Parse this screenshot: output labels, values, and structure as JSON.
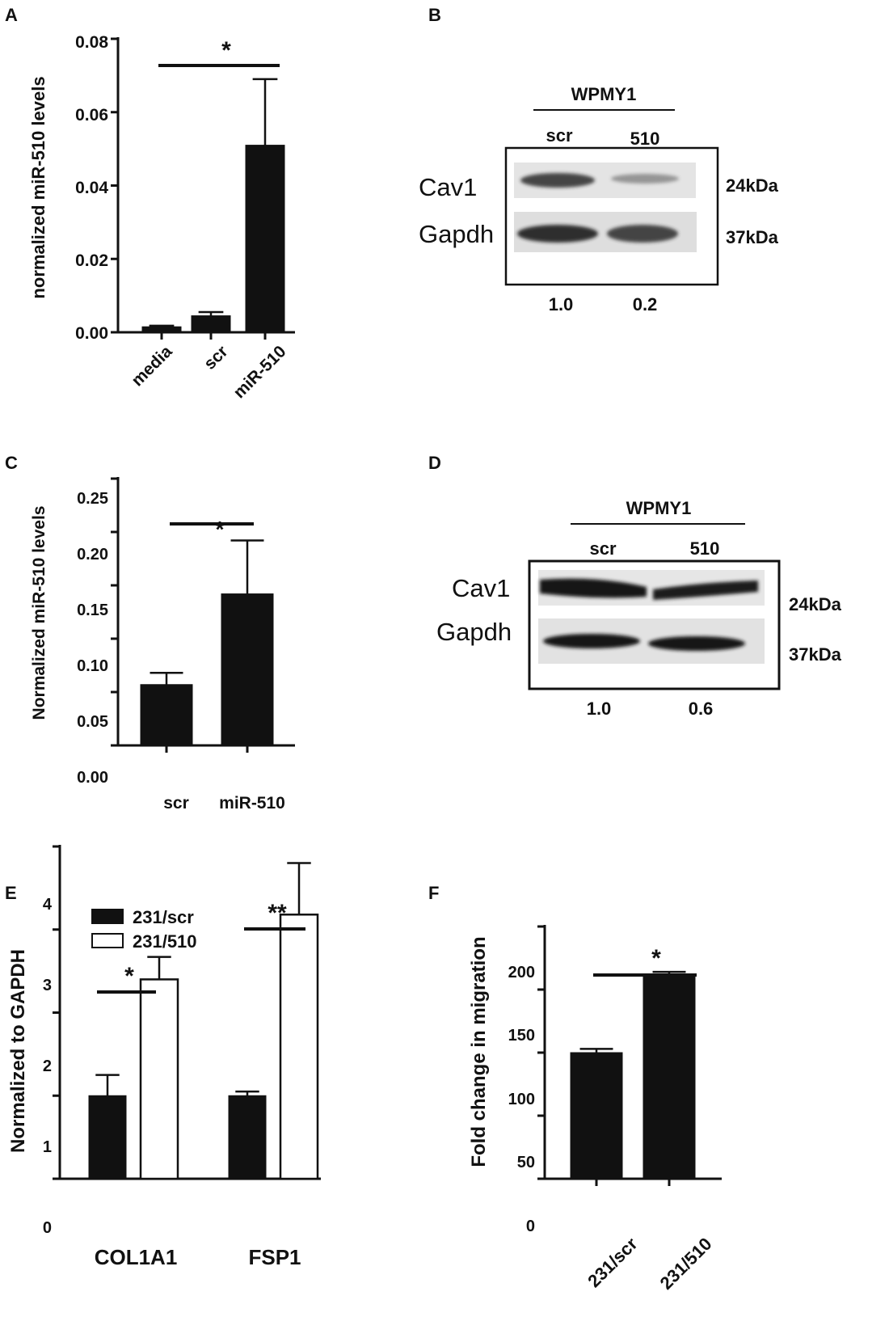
{
  "chart_data": [
    {
      "panel": "A",
      "type": "bar",
      "ylabel": "normalized miR-510 levels",
      "categories": [
        "media",
        "scr",
        "miR-510"
      ],
      "values": [
        0.0015,
        0.0045,
        0.051
      ],
      "errors": [
        0.0003,
        0.001,
        0.018
      ],
      "ylim": [
        0,
        0.08
      ],
      "yticks": [
        "0.00",
        "0.02",
        "0.04",
        "0.06",
        "0.08"
      ],
      "significance": [
        {
          "from": 0,
          "to": 2,
          "label": "*"
        }
      ],
      "legend": "none",
      "grid": false
    },
    {
      "panel": "C",
      "type": "bar",
      "ylabel": "Normalized miR-510 levels",
      "categories": [
        "scr",
        "miR-510"
      ],
      "values": [
        0.057,
        0.142
      ],
      "errors": [
        0.011,
        0.05
      ],
      "ylim": [
        0,
        0.25
      ],
      "yticks": [
        "0.00",
        "0.05",
        "0.10",
        "0.15",
        "0.20",
        "0.25"
      ],
      "significance": [
        {
          "from": 0,
          "to": 1,
          "label": "*"
        }
      ],
      "legend": "none",
      "grid": false
    },
    {
      "panel": "E",
      "type": "bar",
      "ylabel": "Normalized to  GAPDH",
      "categories": [
        "COL1A1",
        "FSP1"
      ],
      "series": [
        {
          "name": "231/scr",
          "values": [
            1.0,
            1.0
          ],
          "errors": [
            0.25,
            0.05
          ],
          "fill": "#111111"
        },
        {
          "name": "231/510",
          "values": [
            2.4,
            3.18
          ],
          "errors": [
            0.27,
            0.62
          ],
          "fill": "#ffffff"
        }
      ],
      "ylim": [
        0,
        4
      ],
      "yticks": [
        "0",
        "1",
        "2",
        "3",
        "4"
      ],
      "significance": [
        {
          "category": 0,
          "label": "*"
        },
        {
          "category": 1,
          "label": "**"
        }
      ],
      "legend": "top-left",
      "grid": false
    },
    {
      "panel": "F",
      "type": "bar",
      "ylabel": "Fold change in migration",
      "categories": [
        "231/scr",
        "231/510"
      ],
      "values": [
        100,
        160
      ],
      "errors": [
        3,
        4
      ],
      "ylim": [
        0,
        200
      ],
      "yticks": [
        "0",
        "50",
        "100",
        "150",
        "200"
      ],
      "significance": [
        {
          "from": 0,
          "to": 1,
          "label": "*"
        }
      ],
      "legend": "none",
      "grid": false
    }
  ],
  "blots": [
    {
      "panel": "B",
      "cell_line": "WPMY1",
      "lanes": [
        "scr",
        "510"
      ],
      "rows": [
        {
          "name": "Cav1",
          "size": "24kDa"
        },
        {
          "name": "Gapdh",
          "size": "37kDa"
        }
      ],
      "quant": [
        "1.0",
        "0.2"
      ]
    },
    {
      "panel": "D",
      "cell_line": "WPMY1",
      "lanes": [
        "scr",
        "510"
      ],
      "rows": [
        {
          "name": "Cav1",
          "size": "24kDa"
        },
        {
          "name": "Gapdh",
          "size": "37kDa"
        }
      ],
      "quant": [
        "1.0",
        "0.6"
      ]
    }
  ]
}
